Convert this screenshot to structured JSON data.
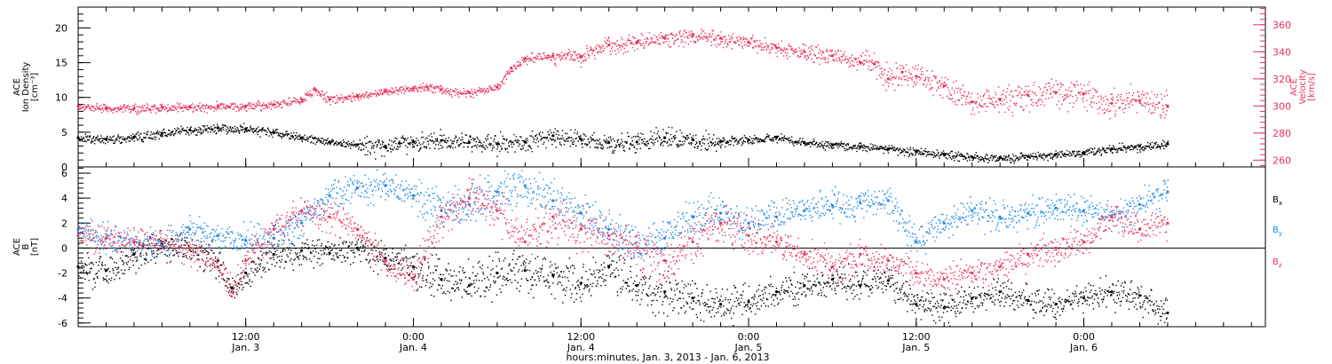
{
  "xaxis": {
    "caption": "hours:minutes, Jan.  3, 2013 - Jan.  6, 2013",
    "range_hours": [
      0,
      85
    ],
    "ticks": [
      {
        "hours": 12,
        "time": "12:00",
        "date": "Jan. 3"
      },
      {
        "hours": 24,
        "time": "0:00",
        "date": "Jan. 4"
      },
      {
        "hours": 36,
        "time": "12:00",
        "date": "Jan. 4"
      },
      {
        "hours": 48,
        "time": "0:00",
        "date": "Jan. 5"
      },
      {
        "hours": 60,
        "time": "12:00",
        "date": "Jan. 5"
      },
      {
        "hours": 72,
        "time": "0:00",
        "date": "Jan. 6"
      }
    ]
  },
  "colors": {
    "black": "#000000",
    "pink": "#e8325d",
    "blue": "#1e88e5"
  },
  "chart_data": [
    {
      "type": "scatter",
      "left_axis": {
        "title": [
          "ACE",
          "Ion Density",
          "[cm⁻³]"
        ],
        "ylim": [
          0,
          23
        ],
        "ticks": [
          0,
          5,
          10,
          15,
          20
        ],
        "color": "#000000"
      },
      "right_axis": {
        "title": [
          "ACE",
          "Velocity",
          "[km/s]"
        ],
        "ylim": [
          255,
          373
        ],
        "ticks": [
          260,
          280,
          300,
          320,
          340,
          360
        ],
        "color": "#e8325d"
      },
      "series": [
        {
          "color": "#000000",
          "axis": "left",
          "x": [
            0,
            2,
            4,
            6,
            8,
            10,
            12,
            14,
            16,
            18,
            20,
            22,
            23,
            24,
            26,
            28,
            30,
            32,
            34,
            36,
            38,
            40,
            42,
            44,
            46,
            48,
            50,
            52,
            54,
            56,
            58,
            60,
            62,
            64,
            66,
            68,
            70,
            72,
            74,
            76,
            78
          ],
          "y": [
            4.2,
            4.0,
            4.3,
            4.8,
            5.3,
            5.6,
            5.5,
            5.0,
            4.2,
            3.6,
            3.2,
            3.0,
            3.4,
            3.6,
            3.8,
            3.5,
            3.3,
            3.6,
            4.5,
            4.0,
            3.5,
            3.6,
            4.2,
            3.9,
            3.7,
            3.9,
            4.3,
            3.5,
            3.2,
            2.9,
            2.6,
            2.2,
            1.8,
            1.4,
            1.3,
            1.5,
            1.8,
            2.1,
            2.6,
            3.0,
            3.3
          ]
        },
        {
          "color": "#e8325d",
          "axis": "right",
          "x": [
            0,
            2,
            4,
            6,
            8,
            10,
            12,
            14,
            16,
            17,
            18,
            20,
            22,
            24,
            25,
            26,
            28,
            30,
            31,
            32,
            34,
            36,
            38,
            40,
            42,
            44,
            46,
            48,
            50,
            52,
            54,
            56,
            57,
            58,
            59,
            60,
            62,
            64,
            66,
            68,
            70,
            72,
            74,
            76,
            78
          ],
          "y": [
            300,
            298,
            298,
            299,
            299,
            300,
            300,
            301,
            305,
            312,
            305,
            307,
            311,
            313,
            314,
            312,
            310,
            314,
            328,
            335,
            337,
            336,
            345,
            347,
            350,
            352,
            350,
            347,
            343,
            340,
            337,
            332,
            331,
            320,
            325,
            322,
            315,
            303,
            305,
            308,
            310,
            309,
            302,
            304,
            300
          ]
        }
      ]
    },
    {
      "type": "scatter",
      "left_axis": {
        "title": [
          "ACE",
          "B",
          "[nT]"
        ],
        "ylim": [
          -6.3,
          6.5
        ],
        "ticks": [
          -6,
          -4,
          -2,
          0,
          2,
          4,
          6
        ],
        "color": "#000000"
      },
      "zero_line": true,
      "series": [
        {
          "name_main": "B",
          "name_sub": "x",
          "color": "#000000",
          "x": [
            0,
            2,
            4,
            6,
            8,
            10,
            11,
            12,
            14,
            16,
            18,
            20,
            22,
            24,
            26,
            28,
            30,
            32,
            34,
            36,
            38,
            40,
            42,
            44,
            46,
            48,
            50,
            52,
            54,
            56,
            58,
            60,
            62,
            64,
            66,
            68,
            70,
            72,
            74,
            76,
            78
          ],
          "y": [
            -1.5,
            -1.8,
            -0.5,
            0.3,
            0.0,
            -1.0,
            -3.2,
            -2.0,
            -0.5,
            -0.2,
            -0.4,
            0.0,
            -0.8,
            -1.5,
            -2.5,
            -3.0,
            -2.0,
            -1.8,
            -2.2,
            -2.8,
            -1.5,
            -3.0,
            -3.5,
            -4.0,
            -4.5,
            -4.3,
            -3.5,
            -3.0,
            -2.5,
            -3.0,
            -2.6,
            -4.5,
            -4.8,
            -4.0,
            -3.5,
            -4.2,
            -4.5,
            -4.0,
            -3.5,
            -3.8,
            -5.2
          ]
        },
        {
          "name_main": "B",
          "name_sub": "y",
          "color": "#1e88e5",
          "x": [
            0,
            2,
            4,
            6,
            8,
            10,
            12,
            14,
            16,
            18,
            20,
            22,
            24,
            26,
            28,
            30,
            32,
            34,
            36,
            38,
            40,
            42,
            44,
            46,
            48,
            50,
            52,
            54,
            56,
            58,
            60,
            62,
            64,
            66,
            68,
            70,
            72,
            74,
            76,
            78
          ],
          "y": [
            1.5,
            0.8,
            0.5,
            0.2,
            1.5,
            1.0,
            0.6,
            0.8,
            2.0,
            4.2,
            4.8,
            5.0,
            4.2,
            3.0,
            3.5,
            4.5,
            5.0,
            3.8,
            2.8,
            1.5,
            0.0,
            0.8,
            2.5,
            2.8,
            2.0,
            2.5,
            3.0,
            3.4,
            3.6,
            3.8,
            0.5,
            2.0,
            3.0,
            2.5,
            2.8,
            3.2,
            3.0,
            2.6,
            3.5,
            4.5
          ]
        },
        {
          "name_main": "B",
          "name_sub": "z",
          "color": "#e8325d",
          "x": [
            0,
            2,
            4,
            6,
            8,
            10,
            11,
            12,
            14,
            16,
            18,
            20,
            22,
            24,
            26,
            28,
            30,
            32,
            34,
            36,
            38,
            40,
            42,
            44,
            46,
            48,
            50,
            52,
            54,
            56,
            58,
            60,
            62,
            64,
            66,
            68,
            70,
            72,
            74,
            76,
            78
          ],
          "y": [
            1.0,
            0.8,
            0.5,
            0.5,
            0.0,
            -1.5,
            -3.5,
            -1.0,
            1.5,
            3.0,
            2.5,
            1.5,
            -1.0,
            -2.5,
            2.5,
            4.0,
            3.0,
            0.5,
            2.5,
            1.5,
            1.0,
            0.0,
            -1.0,
            0.5,
            2.0,
            1.0,
            0.5,
            -0.5,
            -1.5,
            -0.5,
            -1.0,
            -2.0,
            -2.5,
            -2.0,
            -1.5,
            -0.5,
            0.0,
            0.5,
            2.5,
            1.5,
            2.0
          ]
        }
      ]
    }
  ]
}
